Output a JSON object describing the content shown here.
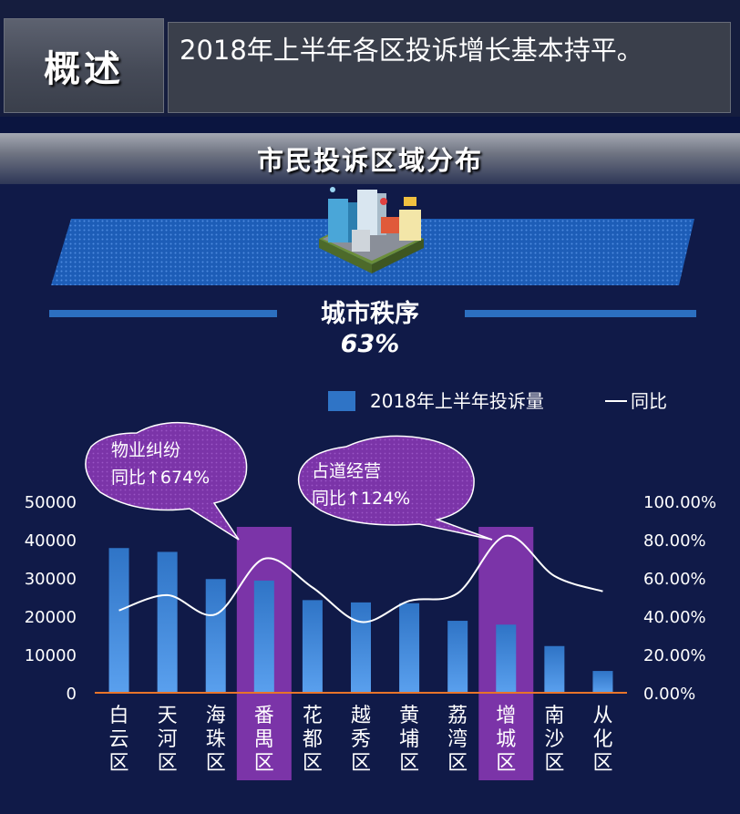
{
  "header": {
    "section_label": "概述",
    "summary": "2018年上半年各区投诉增长基本持平。"
  },
  "panel": {
    "title": "市民投诉区域分布",
    "category_label": "城市秩序",
    "category_share": "63%"
  },
  "callouts": [
    {
      "title": "物业纠纷",
      "detail": "同比↑674%"
    },
    {
      "title": "占道经营",
      "detail": "同比↑124%"
    }
  ],
  "chart_data": {
    "type": "bar",
    "categories": [
      "白云区",
      "天河区",
      "海珠区",
      "番禺区",
      "花都区",
      "越秀区",
      "黄埔区",
      "荔湾区",
      "增城区",
      "南沙区",
      "从化区"
    ],
    "series": [
      {
        "name": "2018年上半年投诉量",
        "type": "bar",
        "axis": "left",
        "values": [
          37800,
          36800,
          29700,
          29300,
          24200,
          23600,
          23400,
          18800,
          17800,
          12200,
          5700
        ]
      },
      {
        "name": "同比",
        "type": "line",
        "axis": "right",
        "values": [
          0.43,
          0.51,
          0.41,
          0.7,
          0.55,
          0.37,
          0.48,
          0.52,
          0.82,
          0.61,
          0.53
        ]
      }
    ],
    "highlighted_categories": [
      "番禺区",
      "增城区"
    ],
    "highlight_color": "#7b34a8",
    "bar_color": "#2f74c6",
    "baseline_color": "#e8742a",
    "y_left_ticks": [
      "0",
      "10000",
      "20000",
      "30000",
      "40000",
      "50000"
    ],
    "y_right_ticks": [
      "0.00%",
      "20.00%",
      "40.00%",
      "60.00%",
      "80.00%",
      "100.00%"
    ],
    "ylim_left": [
      0,
      50000
    ],
    "ylim_right": [
      0,
      1
    ],
    "legend_position": "top-right",
    "grid": false
  }
}
